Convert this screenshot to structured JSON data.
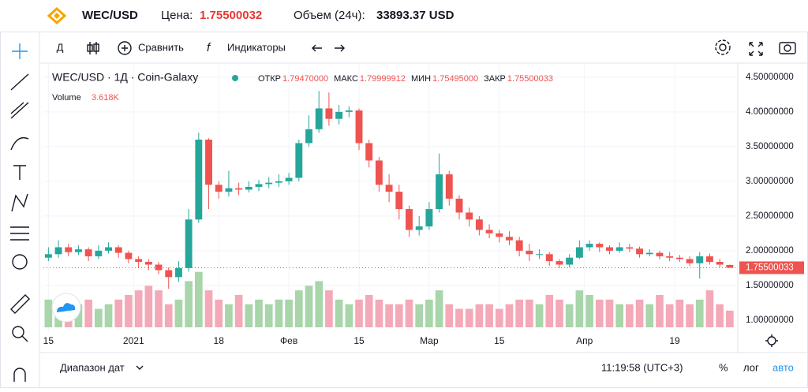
{
  "header": {
    "symbol": "WEC/USD",
    "price_label": "Цена:",
    "price": "1.75500032",
    "volume_label": "Объем (24ч):",
    "volume": "33893.37 USD"
  },
  "toolbar": {
    "interval": "Д",
    "compare": "Сравнить",
    "indicators": "Индикаторы"
  },
  "footer": {
    "range": "Диапазон дат",
    "time": "11:19:58 (UTC+3)",
    "percent": "%",
    "log": "лог",
    "auto": "авто"
  },
  "chart_data": {
    "type": "candlestick",
    "title": "WEC/USD · 1Д · Coin-Galaxy",
    "legend": {
      "open_label": "ОТКР",
      "open": "1.79470000",
      "high_label": "МАКС",
      "high": "1.79999912",
      "low_label": "МИН",
      "low": "1.75495000",
      "close_label": "ЗАКР",
      "close": "1.75500033",
      "volume_label": "Volume",
      "volume": "3.618K"
    },
    "last_price_label": "1.75500033",
    "up_color": "#26a69a",
    "down_color": "#ef5350",
    "volume_up_color": "#a8d5a9",
    "volume_down_color": "#f4a9b8",
    "grid": true,
    "xlim": [
      -0.5,
      68.8
    ],
    "ylim": [
      0.84,
      4.68
    ],
    "volume_lim": [
      0,
      14
    ],
    "xticks": [
      {
        "value": 0,
        "label": "15"
      },
      {
        "value": 8.5,
        "label": "2021"
      },
      {
        "value": 17,
        "label": "18"
      },
      {
        "value": 24,
        "label": "Фев"
      },
      {
        "value": 31,
        "label": "15"
      },
      {
        "value": 38,
        "label": "Мар"
      },
      {
        "value": 45,
        "label": "15"
      },
      {
        "value": 53.5,
        "label": "Апр"
      },
      {
        "value": 62.5,
        "label": "19"
      }
    ],
    "yticks": [
      {
        "value": 1,
        "label": "1.00000000"
      },
      {
        "value": 1.5,
        "label": "1.50000000"
      },
      {
        "value": 2,
        "label": "2.00000000"
      },
      {
        "value": 2.5,
        "label": "2.50000000"
      },
      {
        "value": 3,
        "label": "3.00000000"
      },
      {
        "value": 3.5,
        "label": "3.50000000"
      },
      {
        "value": 4,
        "label": "4.00000000"
      },
      {
        "value": 4.5,
        "label": "4.50000000"
      }
    ],
    "open": [
      1.9,
      1.95,
      2.05,
      1.98,
      2.02,
      1.92,
      2.0,
      2.05,
      1.97,
      1.88,
      1.84,
      1.8,
      1.72,
      1.62,
      1.75,
      2.45,
      3.6,
      2.95,
      2.85,
      2.9,
      2.88,
      2.92,
      2.96,
      2.98,
      3.0,
      3.05,
      3.55,
      3.75,
      4.05,
      3.9,
      4.0,
      4.02,
      3.55,
      3.3,
      2.95,
      2.85,
      2.6,
      2.3,
      2.35,
      2.6,
      3.1,
      2.75,
      2.55,
      2.45,
      2.3,
      2.25,
      2.2,
      2.15,
      2.0,
      1.95,
      1.95,
      1.85,
      1.8,
      1.9,
      2.05,
      2.1,
      2.05,
      2.0,
      2.05,
      2.03,
      1.95,
      1.97,
      1.92,
      1.9,
      1.88,
      1.82,
      1.92,
      1.84,
      1.7947
    ],
    "high": [
      2.05,
      2.15,
      2.1,
      2.08,
      2.05,
      2.08,
      2.12,
      2.08,
      2.0,
      1.92,
      1.88,
      1.84,
      1.76,
      1.85,
      2.6,
      3.7,
      3.62,
      3.0,
      3.15,
      2.98,
      3.0,
      3.02,
      3.06,
      3.1,
      3.12,
      3.6,
      3.95,
      4.3,
      4.28,
      4.1,
      4.08,
      4.05,
      3.6,
      3.35,
      3.1,
      2.95,
      2.65,
      2.5,
      2.7,
      3.4,
      3.15,
      2.8,
      2.62,
      2.5,
      2.38,
      2.3,
      2.28,
      2.2,
      2.1,
      2.02,
      1.98,
      1.88,
      1.95,
      2.15,
      2.15,
      2.12,
      2.08,
      2.12,
      2.1,
      2.06,
      2.02,
      2.0,
      1.98,
      1.94,
      1.92,
      1.98,
      1.96,
      1.88,
      1.79999912
    ],
    "low": [
      1.85,
      1.9,
      1.92,
      1.94,
      1.85,
      1.88,
      1.96,
      1.9,
      1.82,
      1.76,
      1.72,
      1.66,
      1.45,
      1.55,
      1.7,
      2.4,
      2.6,
      2.75,
      2.78,
      2.8,
      2.84,
      2.86,
      2.9,
      2.92,
      2.95,
      3.0,
      3.5,
      3.7,
      3.8,
      3.82,
      3.92,
      3.45,
      3.2,
      2.85,
      2.7,
      2.45,
      2.2,
      2.22,
      2.3,
      2.55,
      2.65,
      2.45,
      2.35,
      2.22,
      2.18,
      2.12,
      2.08,
      1.92,
      1.85,
      1.88,
      1.78,
      1.75,
      1.76,
      1.88,
      2.0,
      1.98,
      1.95,
      1.97,
      1.98,
      1.9,
      1.92,
      1.88,
      1.85,
      1.84,
      1.78,
      1.6,
      1.8,
      1.76,
      1.75495
    ],
    "close": [
      1.95,
      2.05,
      1.98,
      2.02,
      1.92,
      2.0,
      2.05,
      1.97,
      1.88,
      1.84,
      1.8,
      1.72,
      1.62,
      1.75,
      2.45,
      3.6,
      2.95,
      2.85,
      2.9,
      2.88,
      2.92,
      2.96,
      2.98,
      3.0,
      3.05,
      3.55,
      3.75,
      4.05,
      3.9,
      4.0,
      4.02,
      3.55,
      3.3,
      2.95,
      2.85,
      2.6,
      2.3,
      2.35,
      2.6,
      3.1,
      2.75,
      2.55,
      2.45,
      2.3,
      2.25,
      2.2,
      2.15,
      2.0,
      1.95,
      1.95,
      1.85,
      1.8,
      1.9,
      2.05,
      2.1,
      2.05,
      2.0,
      2.05,
      2.03,
      1.95,
      1.97,
      1.92,
      1.9,
      1.88,
      1.82,
      1.92,
      1.84,
      1.8,
      1.75500033
    ],
    "volume": [
      6,
      5,
      7,
      5,
      6,
      4,
      5,
      6,
      7,
      8,
      9,
      8,
      5,
      6,
      10,
      12,
      8,
      6,
      5,
      7,
      5,
      6,
      5,
      6,
      6,
      8,
      9,
      10,
      8,
      6,
      5,
      6,
      7,
      6,
      5,
      5,
      6,
      5,
      6,
      8,
      5,
      4,
      4,
      5,
      5,
      4,
      5,
      6,
      6,
      5,
      7,
      6,
      5,
      8,
      7,
      6,
      6,
      5,
      5,
      6,
      5,
      7,
      5,
      6,
      5,
      6,
      8,
      5,
      3.618
    ]
  }
}
